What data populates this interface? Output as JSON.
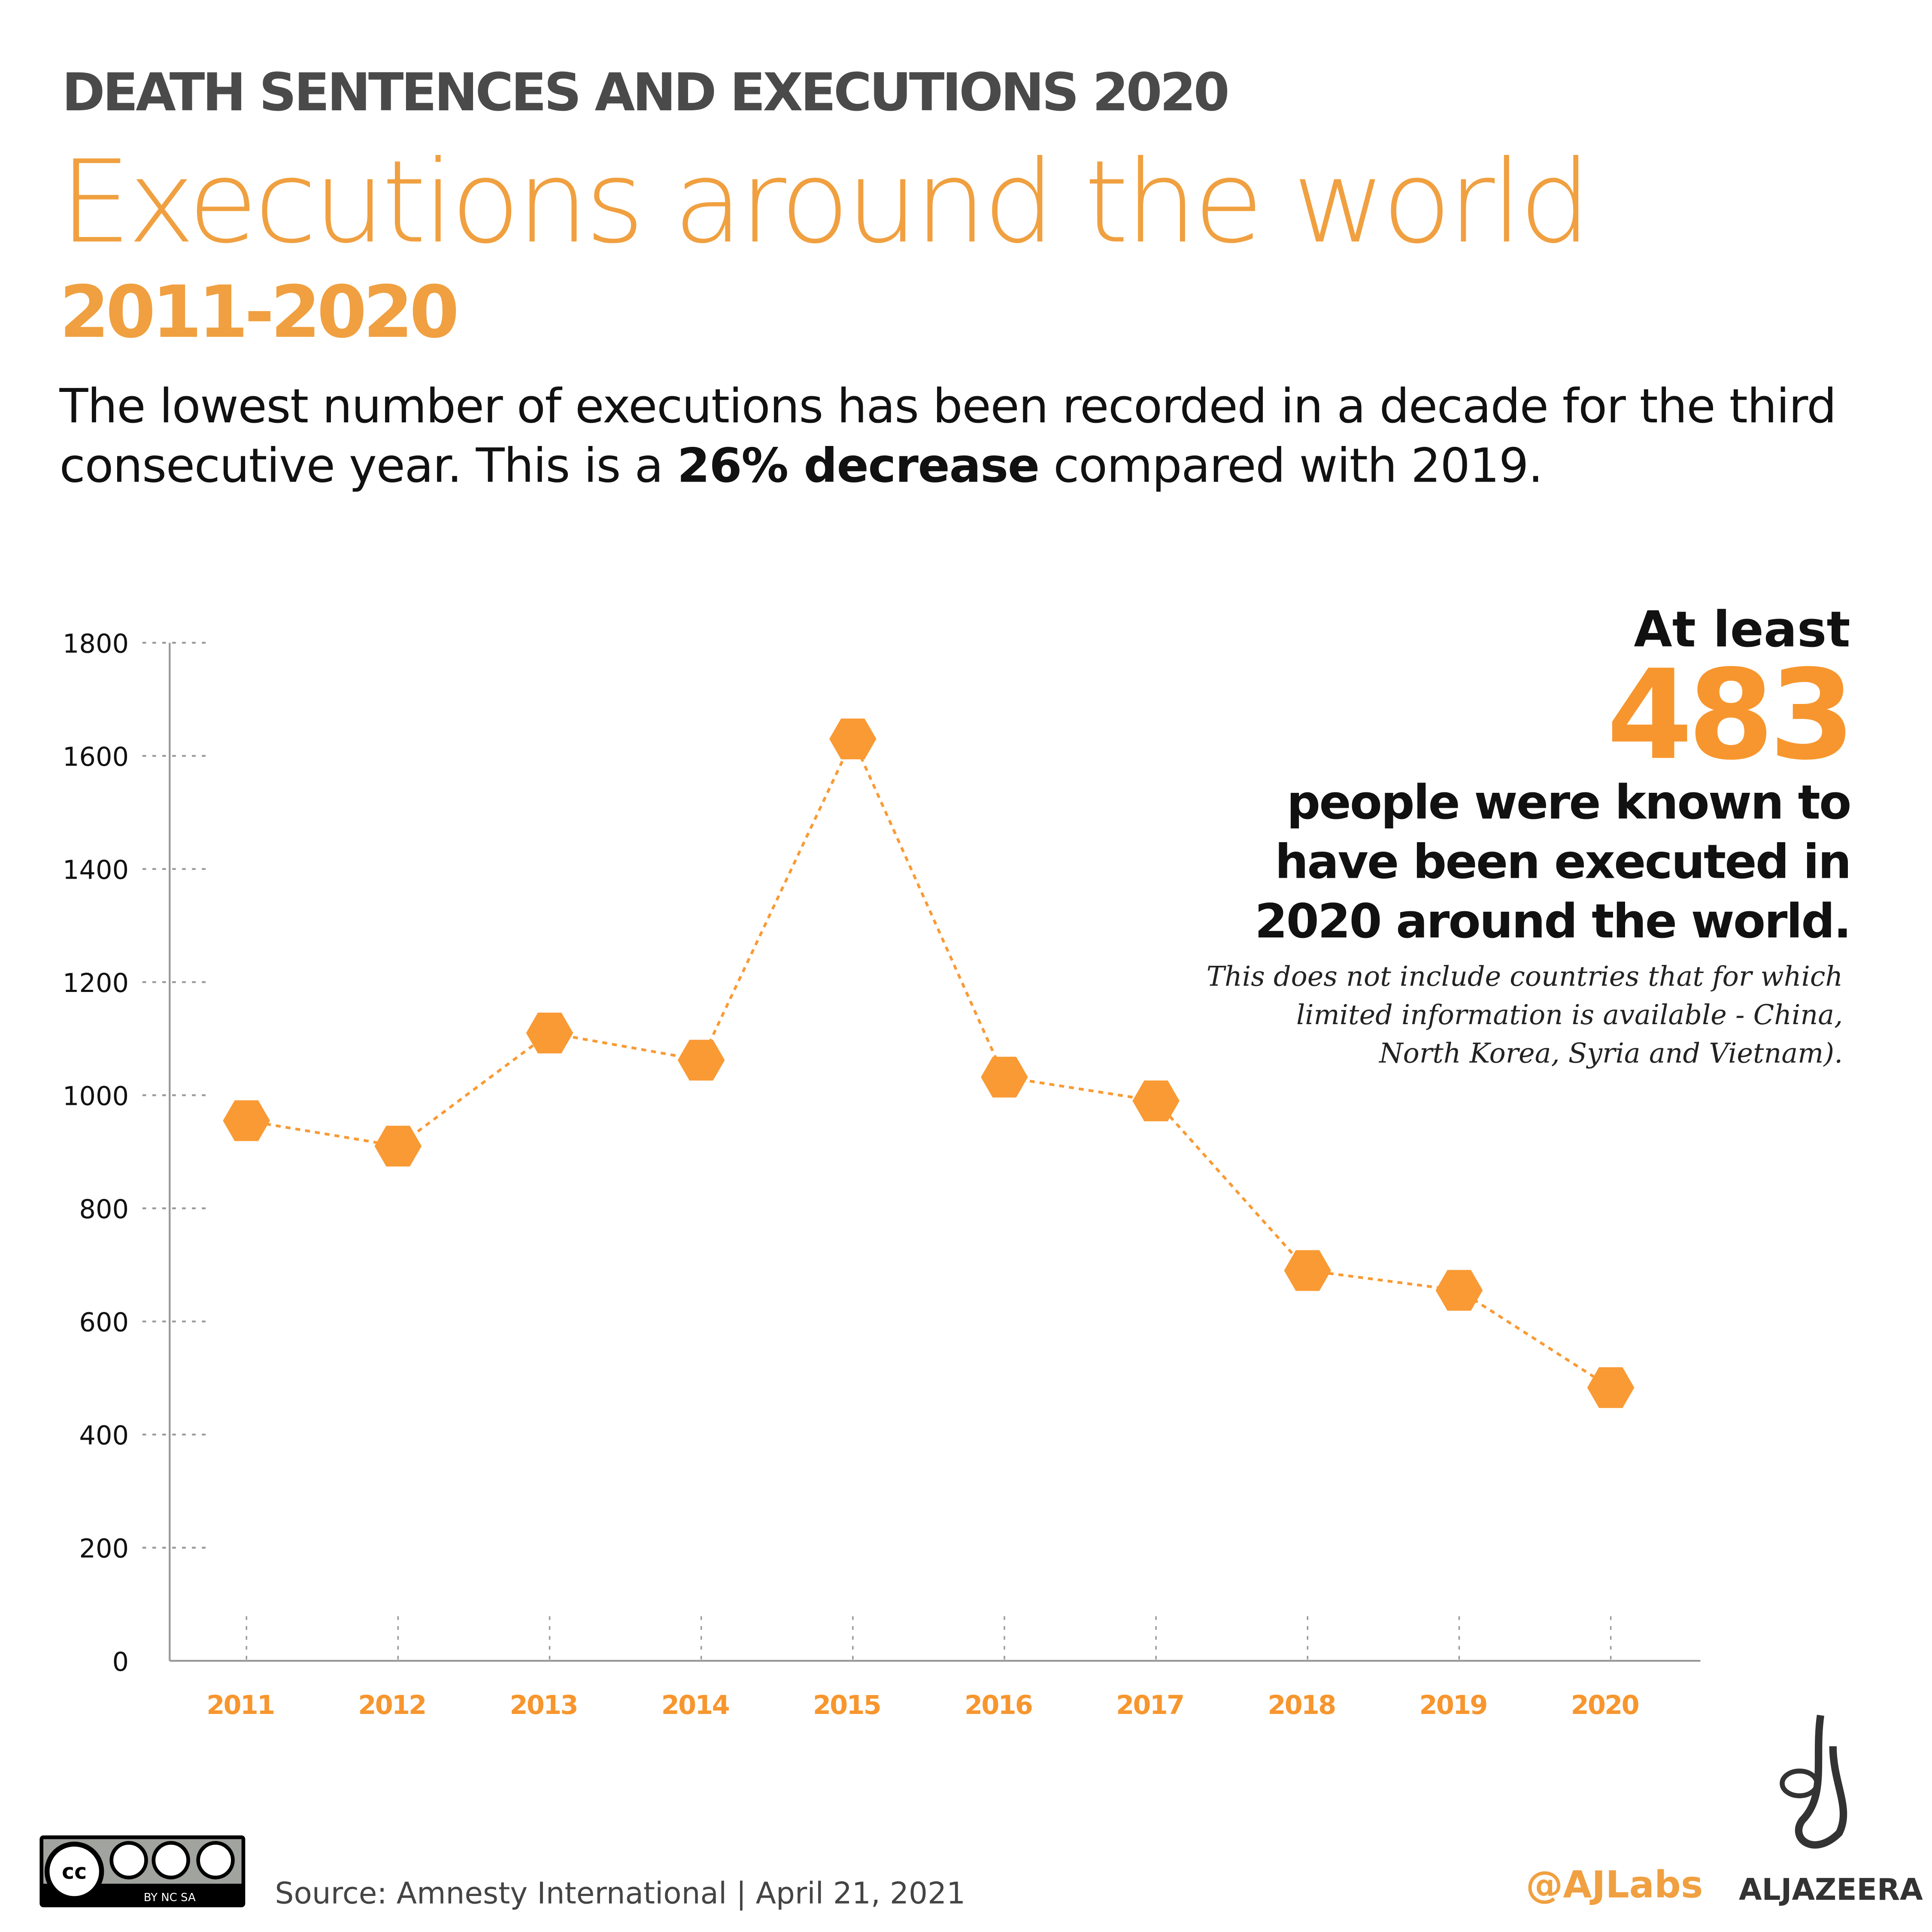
{
  "header": {
    "kicker": "DEATH SENTENCES AND EXECUTIONS 2020",
    "title": "Executions around the world",
    "range": "2011-2020",
    "desc_pre": "The lowest number of executions has been recorded in a decade for the third consecutive year. This is a ",
    "desc_bold": "26% decrease",
    "desc_post": " compared with 2019."
  },
  "callout": {
    "lead": "At least",
    "number": "483",
    "text": "people were known to have been executed in 2020 around the world.",
    "note": "This does not include countries that for which limited information is available - China, North Korea, Syria and Vietnam)."
  },
  "chart_data": {
    "type": "line",
    "categories": [
      "2011",
      "2012",
      "2013",
      "2014",
      "2015",
      "2016",
      "2017",
      "2018",
      "2019",
      "2020"
    ],
    "values": [
      955,
      910,
      1110,
      1062,
      1630,
      1032,
      990,
      690,
      655,
      483
    ],
    "ylim": [
      0,
      1800
    ],
    "yticks": [
      "0",
      "200",
      "400",
      "600",
      "800",
      "1000",
      "1200",
      "1400",
      "1600",
      "1800"
    ],
    "grid": "dotted tick marks",
    "colors": {
      "series": "#f99a34",
      "axis": "#999999",
      "xlabels": "#f7962e"
    }
  },
  "footer": {
    "license": "BY NC SA",
    "source": "Source: Amnesty International  |  April 21, 2021",
    "handle": "@AJLabs",
    "brand": "ALJAZEERA"
  }
}
